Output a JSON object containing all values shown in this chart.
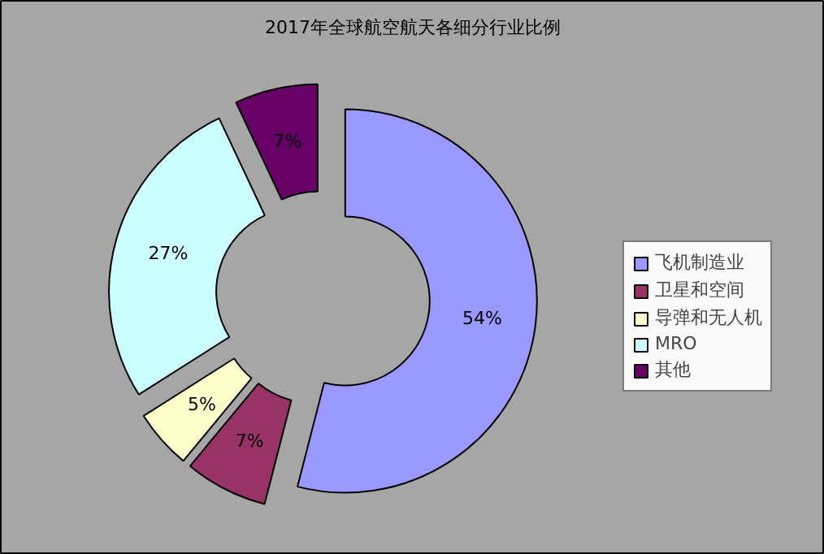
{
  "chart_data": {
    "type": "donut",
    "title": "2017年全球航空航天各细分行业比例",
    "categories": [
      "飞机制造业",
      "卫星和空间",
      "导弹和无人机",
      "MRO",
      "其他"
    ],
    "values": [
      54,
      7,
      5,
      27,
      7
    ],
    "colors": [
      "#9999ff",
      "#993366",
      "#ffffcc",
      "#ccffff",
      "#660066"
    ],
    "value_labels": [
      "54%",
      "7%",
      "5%",
      "27%",
      "7%"
    ],
    "legend": "right"
  }
}
